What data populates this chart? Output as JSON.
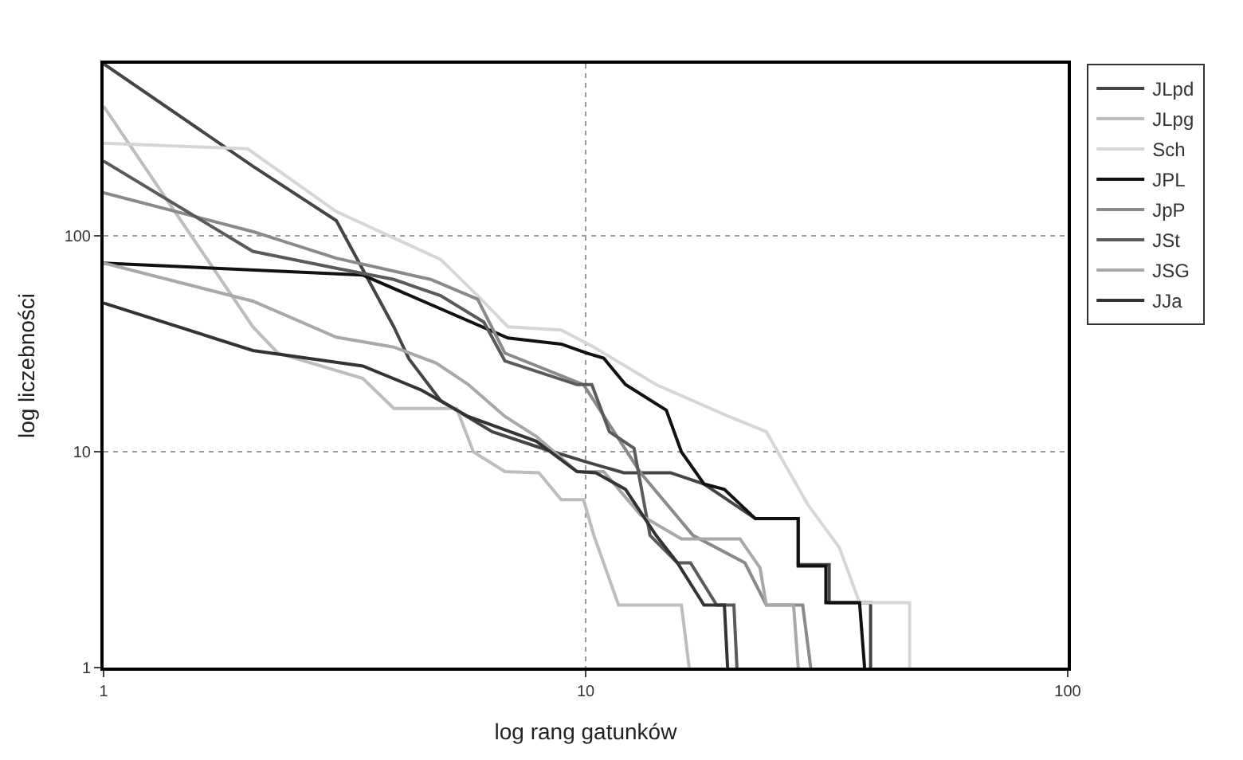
{
  "chart_data": {
    "type": "line",
    "xlabel": "log rang gatunków",
    "ylabel": "log liczebności",
    "log": "xy",
    "xlim": [
      1,
      100
    ],
    "ylim": [
      1,
      630
    ],
    "xticks": [
      1,
      10,
      100
    ],
    "yticks": [
      1,
      10,
      100
    ],
    "grid": true,
    "legend": "top right",
    "line_style": "solid",
    "marker": "none",
    "series": [
      {
        "name": "JLpd",
        "color": "#454545",
        "x": [
          1,
          2.04,
          3.04,
          4,
          4.3,
          5,
          6.4,
          8,
          10,
          12,
          15,
          17.6,
          22.5,
          27.6,
          27.6,
          32,
          32,
          39,
          39
        ],
        "values": [
          630,
          211,
          118,
          38,
          27,
          17.3,
          12.4,
          10.5,
          9,
          8,
          8,
          7.1,
          4.9,
          4.9,
          3,
          3,
          2,
          2,
          1
        ]
      },
      {
        "name": "JLpg",
        "color": "#bdbdbd",
        "x": [
          1,
          2.04,
          2.3,
          3.45,
          4,
          5.4,
          5.85,
          6.8,
          8,
          8.9,
          9.9,
          10.4,
          11.7,
          15.8,
          16.4
        ],
        "values": [
          400,
          38,
          28.7,
          21.9,
          15.9,
          15.9,
          10,
          8.1,
          8,
          6,
          6,
          4.1,
          1.95,
          1.95,
          1
        ]
      },
      {
        "name": "Sch",
        "color": "#d6d6d6",
        "x": [
          1,
          1.99,
          3.04,
          5,
          5.97,
          6.9,
          8.9,
          10.4,
          14,
          19.8,
          23.7,
          28.9,
          33.6,
          37,
          47,
          47
        ],
        "values": [
          270,
          254,
          130,
          78,
          53,
          38,
          36.7,
          30.6,
          20.5,
          14.6,
          12.4,
          5.7,
          3.6,
          2,
          2,
          1
        ]
      },
      {
        "name": "JPL",
        "color": "#111111",
        "x": [
          1,
          3.45,
          6.9,
          8.9,
          10.1,
          10.9,
          12.1,
          14.7,
          15.8,
          17.6,
          19.4,
          22.5,
          27.6,
          27.6,
          31.5,
          31.5,
          37,
          37.9
        ],
        "values": [
          75,
          66,
          33.7,
          31.6,
          28.6,
          27.2,
          20.5,
          15.6,
          10,
          7.1,
          6.7,
          4.9,
          4.9,
          2.96,
          2.96,
          2,
          2,
          1
        ]
      },
      {
        "name": "JpP",
        "color": "#8a8a8a",
        "x": [
          1,
          2.04,
          3.04,
          4.77,
          5.97,
          6.8,
          9.9,
          13,
          16.7,
          21.4,
          23.7,
          28.2,
          29.3
        ],
        "values": [
          159,
          105,
          79,
          63,
          51,
          28.7,
          20.5,
          8,
          4.1,
          3.06,
          1.95,
          1.95,
          1
        ]
      },
      {
        "name": "JSt",
        "color": "#5a5a5a",
        "x": [
          1,
          2.04,
          3.04,
          4,
          5,
          6.15,
          6.8,
          9.6,
          10.3,
          11.2,
          12.6,
          13.6,
          15.5,
          16.5,
          18.7,
          20.3,
          20.6
        ],
        "values": [
          223,
          85,
          71,
          63,
          53,
          40,
          26.4,
          20.5,
          20.5,
          12.4,
          10.4,
          4.1,
          3.06,
          3.06,
          1.95,
          1.95,
          1
        ]
      },
      {
        "name": "JSG",
        "color": "#a8a8a8",
        "x": [
          1,
          2.04,
          3.04,
          4,
          4.9,
          5.7,
          6.8,
          7.9,
          9.6,
          10.9,
          13,
          15.8,
          20.9,
          23,
          23.7,
          27,
          27.6
        ],
        "values": [
          75,
          50,
          34,
          30.6,
          25.8,
          20.6,
          14.6,
          11.8,
          8.1,
          8.1,
          5.1,
          3.95,
          3.95,
          2.9,
          1.95,
          1.95,
          1
        ]
      },
      {
        "name": "JJa",
        "color": "#333333",
        "x": [
          1,
          2.04,
          3.45,
          4.55,
          5.7,
          7.9,
          9.6,
          10.5,
          12.1,
          14,
          15.5,
          17.6,
          19.4,
          19.7
        ],
        "values": [
          49,
          29.5,
          25,
          19.4,
          14.6,
          11.2,
          8.1,
          8,
          6.7,
          4.1,
          3.06,
          1.95,
          1.95,
          1
        ]
      }
    ]
  }
}
